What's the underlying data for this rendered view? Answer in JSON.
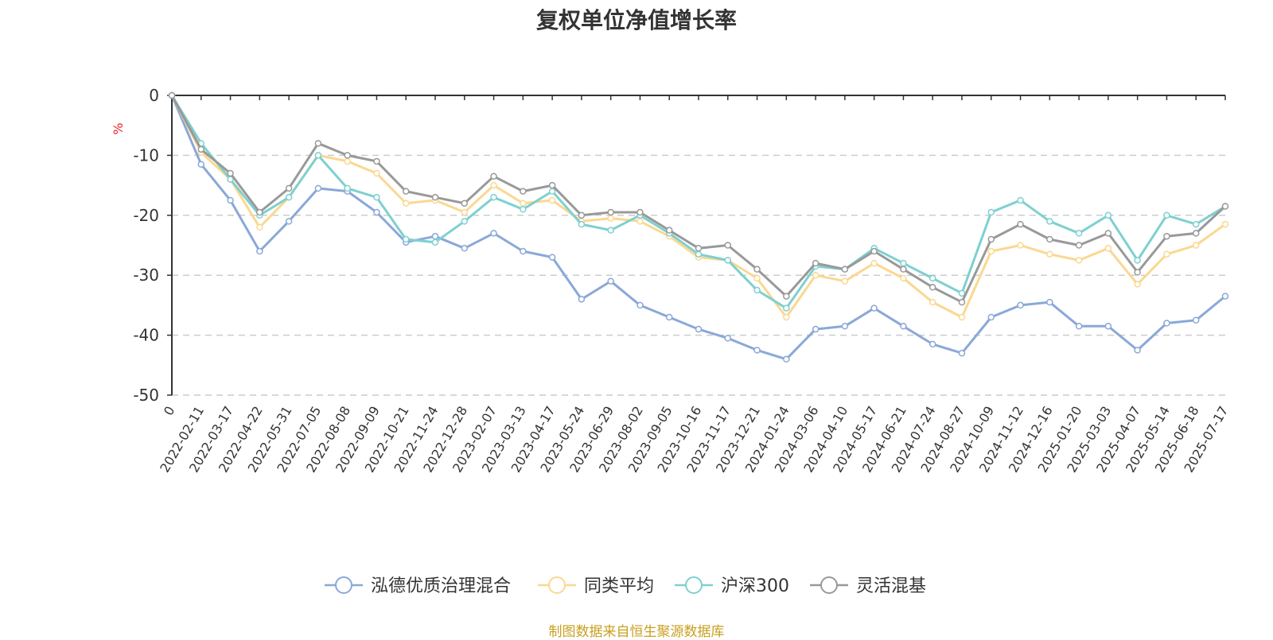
{
  "chart_data": {
    "type": "line",
    "title": "复权单位净值增长率",
    "ylabel": "%",
    "ylim": [
      -50,
      0
    ],
    "yticks": [
      0,
      -10,
      -20,
      -30,
      -40,
      -50
    ],
    "grid": true,
    "legend_position": "bottom",
    "source": "制图数据来自恒生聚源数据库",
    "x_labels": [
      "0",
      "2022-02-11",
      "2022-03-17",
      "2022-04-22",
      "2022-05-31",
      "2022-07-05",
      "2022-08-08",
      "2022-09-09",
      "2022-10-21",
      "2022-11-24",
      "2022-12-28",
      "2023-02-07",
      "2023-03-13",
      "2023-04-17",
      "2023-05-24",
      "2023-06-29",
      "2023-08-02",
      "2023-09-05",
      "2023-10-16",
      "2023-11-17",
      "2023-12-21",
      "2024-01-24",
      "2024-03-06",
      "2024-04-10",
      "2024-05-17",
      "2024-06-21",
      "2024-07-24",
      "2024-08-27",
      "2024-10-09",
      "2024-11-12",
      "2024-12-16",
      "2025-01-20",
      "2025-03-03",
      "2025-04-07",
      "2025-05-14",
      "2025-06-18",
      "2025-07-17"
    ],
    "series": [
      {
        "name": "泓德优质治理混合",
        "color": "#8aa8d8",
        "values": [
          0,
          -11.5,
          -17.5,
          -26,
          -21,
          -15.5,
          -16,
          -19.5,
          -24.5,
          -23.5,
          -25.5,
          -23,
          -26,
          -27,
          -34,
          -31,
          -35,
          -37,
          -39,
          -40.5,
          -42.5,
          -44,
          -39,
          -38.5,
          -35.5,
          -38.5,
          -41.5,
          -43,
          -37,
          -35,
          -34.5,
          -38.5,
          -38.5,
          -42.5,
          -38,
          -37.5,
          -33.5
        ]
      },
      {
        "name": "同类平均",
        "color": "#fad891",
        "values": [
          0,
          -9.5,
          -14,
          -22,
          -17,
          -10,
          -11,
          -13,
          -18,
          -17.5,
          -19.5,
          -15,
          -18,
          -17.5,
          -21,
          -20.5,
          -21,
          -23.5,
          -27,
          -27.5,
          -30.5,
          -37,
          -30,
          -31,
          -28,
          -30.5,
          -34.5,
          -37,
          -26,
          -25,
          -26.5,
          -27.5,
          -25.5,
          -31.5,
          -26.5,
          -25,
          -21.5
        ]
      },
      {
        "name": "沪深300",
        "color": "#7ed0d0",
        "values": [
          0,
          -8,
          -14,
          -20,
          -17,
          -10,
          -15.5,
          -17,
          -24,
          -24.5,
          -21,
          -17,
          -19,
          -16,
          -21.5,
          -22.5,
          -20,
          -23,
          -26.5,
          -27.5,
          -32.5,
          -35.5,
          -28.5,
          -29,
          -25.5,
          -28,
          -30.5,
          -33,
          -19.5,
          -17.5,
          -21,
          -23,
          -20,
          -27.5,
          -20,
          -21.5,
          -18.5
        ]
      },
      {
        "name": "灵活混基",
        "color": "#999999",
        "values": [
          0,
          -9,
          -13,
          -19.5,
          -15.5,
          -8,
          -10,
          -11,
          -16,
          -17,
          -18,
          -13.5,
          -16,
          -15,
          -20,
          -19.5,
          -19.5,
          -22.5,
          -25.5,
          -25,
          -29,
          -33.5,
          -28,
          -29,
          -26,
          -29,
          -32,
          -34.5,
          -24,
          -21.5,
          -24,
          -25,
          -23,
          -29.5,
          -23.5,
          -23,
          -18.5
        ]
      }
    ]
  }
}
